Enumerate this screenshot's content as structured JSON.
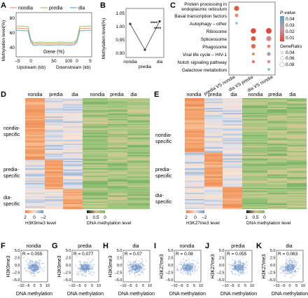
{
  "panels": {
    "A": {
      "letter": "A",
      "legend": [
        "nondia",
        "predia",
        "dia"
      ],
      "series_colors": [
        "#e8956b",
        "#9bc26e",
        "#6fa8d0"
      ],
      "ylabel": "Methylation level(%)",
      "yticks": [
        "80",
        "60",
        "40"
      ],
      "xticks": [
        "–5",
        "0",
        "50",
        "100",
        "0",
        "5"
      ],
      "gene_label": "Gene (%)",
      "xlabel_left": "Upstream (kb)",
      "xlabel_right": "Downstream (kb)"
    },
    "B": {
      "letter": "B",
      "ylabel": "Methylation level(%)",
      "yticks": [
        "1.05",
        "1.00",
        "0.95",
        "0.90"
      ],
      "xticks": [
        "nondia",
        "predia",
        "dia"
      ],
      "sig": [
        "****",
        "****"
      ],
      "chart_data": {
        "type": "line",
        "categories": [
          "nondia",
          "predia",
          "dia"
        ],
        "values": [
          1.01,
          0.91,
          1.02
        ],
        "ylim": [
          0.88,
          1.07
        ]
      }
    },
    "C": {
      "letter": "C",
      "terms": [
        "Protein processing in",
        "endoplasmic reticulum",
        "Basal transcription factors",
        "Autophagy – other",
        "Ribosome",
        "Spliceosome",
        "Phagosome",
        "Viral life cycle – HIV-1",
        "Notch signaling pathway",
        "Galactose metabolism"
      ],
      "xticks": [
        "predia VS nondia",
        "dia VS predia",
        "dia VS nondia"
      ],
      "pvalue_title": "P-value",
      "pvalue_ticks": [
        "0.04",
        "0.03",
        "0.02",
        "0.01"
      ],
      "ratio_title": "GeneRatio",
      "ratio_ticks": [
        "0.04",
        "0.06",
        "0.08"
      ],
      "colors": {
        "low": "#e0473a",
        "high": "#5aa0c8"
      }
    },
    "D": {
      "letter": "D",
      "cols_left": [
        "nondia",
        "predia",
        "dia"
      ],
      "cols_right": [
        "nondia",
        "predia",
        "dia"
      ],
      "rows": [
        "nondia-\nspecific",
        "predia-\nspecific",
        "dia-\nspecific"
      ],
      "scale_left": [
        "2",
        "0",
        "–2"
      ],
      "scale_left_label": "H3K9me3 level",
      "scale_right": [
        "1",
        "0.5",
        "0"
      ],
      "scale_right_label": "DNA methylation level"
    },
    "E": {
      "letter": "E",
      "cols_left": [
        "nondia",
        "predia",
        "dia"
      ],
      "cols_right": [
        "nondia",
        "predia",
        "dia"
      ],
      "rows": [
        "nondia-\nspecific",
        "predia-\nspecific",
        "dia-\nspecific"
      ],
      "scale_left": [
        "2",
        "0",
        "–2"
      ],
      "scale_left_label": "H3K27me3 level",
      "scale_right": [
        "1",
        "0.5",
        "0"
      ],
      "scale_right_label": "DNA methylation level"
    },
    "scatter": [
      {
        "letter": "F",
        "title": "nondia",
        "ylabel": "H3K9me3",
        "r": "R = 0.055"
      },
      {
        "letter": "G",
        "title": "predia",
        "ylabel": "H3K9me3",
        "r": "R = 0.077"
      },
      {
        "letter": "H",
        "title": "dia",
        "ylabel": "H3K9me3",
        "r": "R = 0.07"
      },
      {
        "letter": "I",
        "title": "nondia",
        "ylabel": "H3K27me3",
        "r": "R = 0.08"
      },
      {
        "letter": "J",
        "title": "predia",
        "ylabel": "H3K27me3",
        "r": "R = 0.055"
      },
      {
        "letter": "K",
        "title": "dia",
        "ylabel": "H3K27me3",
        "r": "R = 0.063"
      }
    ],
    "scatter_common": {
      "xlabel": "DNA methylation",
      "xticks": [
        "–10",
        "–5",
        "0",
        "5",
        "10"
      ],
      "yticks": [
        "5.0",
        "2.5",
        "0.0",
        "–2.5",
        "–5.0"
      ]
    }
  }
}
